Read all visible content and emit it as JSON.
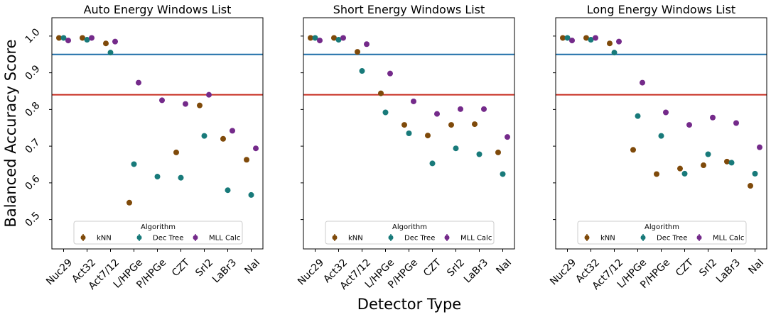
{
  "figure": {
    "ylabel": "Balanced Accuracy Score",
    "xlabel": "Detector Type"
  },
  "colors": {
    "kNN": "#7f4a0a",
    "Dec Tree": "#187a7a",
    "MLL Calc": "#742a8a",
    "blue_line": "#1f6fa8",
    "red_line": "#c62a1e"
  },
  "chart_data": [
    {
      "type": "scatter",
      "title": "Auto Energy Windows List",
      "categories": [
        "Nuc29",
        "Act32",
        "Act7/12",
        "L/HPGe",
        "P/HPGe",
        "CZT",
        "SrI2",
        "LaBr3",
        "NaI"
      ],
      "ylim": [
        0.42,
        1.05
      ],
      "yticks": [
        "0.5",
        "0.6",
        "0.7",
        "0.8",
        "0.9",
        "1.0"
      ],
      "hlines": [
        0.95,
        0.84
      ],
      "legend": {
        "title": "Algorithm",
        "placement": "lower-center"
      },
      "series": [
        {
          "name": "kNN",
          "values": [
            0.995,
            0.995,
            0.98,
            0.546,
            null,
            0.683,
            0.811,
            0.72,
            0.663
          ]
        },
        {
          "name": "Dec Tree",
          "values": [
            0.995,
            0.99,
            0.955,
            0.651,
            0.617,
            0.614,
            0.728,
            0.58,
            0.567
          ]
        },
        {
          "name": "MLL Calc",
          "values": [
            0.988,
            0.995,
            0.985,
            0.873,
            0.825,
            0.815,
            0.84,
            0.742,
            0.694
          ]
        }
      ]
    },
    {
      "type": "scatter",
      "title": "Short Energy Windows List",
      "categories": [
        "Nuc29",
        "Act32",
        "Act7/12",
        "L/HPGe",
        "P/HPGe",
        "CZT",
        "SrI2",
        "LaBr3",
        "NaI"
      ],
      "ylim": [
        0.42,
        1.05
      ],
      "yticks": [
        "0.5",
        "0.6",
        "0.7",
        "0.8",
        "0.9",
        "1.0"
      ],
      "hlines": [
        0.95,
        0.84
      ],
      "legend": {
        "title": "Algorithm",
        "placement": "lower-center"
      },
      "series": [
        {
          "name": "kNN",
          "values": [
            0.995,
            0.995,
            0.957,
            0.844,
            0.758,
            0.729,
            0.758,
            0.76,
            0.683
          ]
        },
        {
          "name": "Dec Tree",
          "values": [
            0.995,
            0.99,
            0.905,
            0.792,
            0.735,
            0.653,
            0.694,
            0.678,
            0.624
          ]
        },
        {
          "name": "MLL Calc",
          "values": [
            0.988,
            0.995,
            0.978,
            0.898,
            0.822,
            0.788,
            0.801,
            0.801,
            0.725
          ]
        }
      ]
    },
    {
      "type": "scatter",
      "title": "Long Energy Windows List",
      "categories": [
        "Nuc29",
        "Act32",
        "Act7/12",
        "L/HPGe",
        "P/HPGe",
        "CZT",
        "SrI2",
        "LaBr3",
        "NaI"
      ],
      "ylim": [
        0.42,
        1.05
      ],
      "yticks": [
        "0.5",
        "0.6",
        "0.7",
        "0.8",
        "0.9",
        "1.0"
      ],
      "hlines": [
        0.95,
        0.84
      ],
      "legend": {
        "title": "Algorithm",
        "placement": "lower-center"
      },
      "series": [
        {
          "name": "kNN",
          "values": [
            0.995,
            0.995,
            0.98,
            0.69,
            0.624,
            0.639,
            0.648,
            0.658,
            0.592
          ]
        },
        {
          "name": "Dec Tree",
          "values": [
            0.995,
            0.99,
            0.955,
            0.782,
            0.728,
            0.625,
            0.678,
            0.655,
            0.625
          ]
        },
        {
          "name": "MLL Calc",
          "values": [
            0.988,
            0.995,
            0.985,
            0.873,
            0.792,
            0.758,
            0.778,
            0.763,
            0.697
          ]
        }
      ]
    }
  ]
}
